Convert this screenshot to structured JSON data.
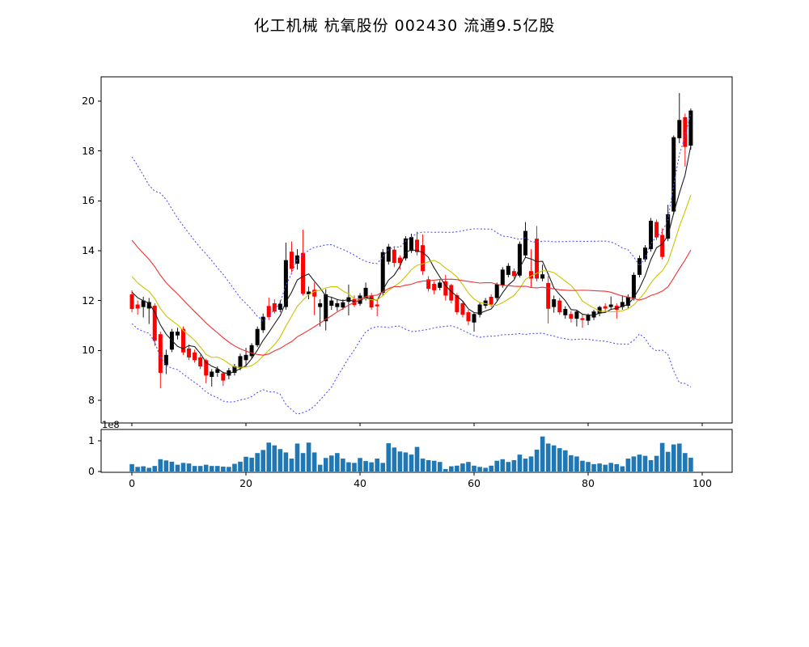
{
  "title": "化工机械 杭氧股份 002430 流通9.5亿股",
  "stock": {
    "industry": "化工机械",
    "name": "杭氧股份",
    "code": "002430",
    "float_shares": "9.5亿股"
  },
  "colors": {
    "background": "#ffffff",
    "axis": "#000000",
    "candle_up": "#000000",
    "candle_down": "#ff0000",
    "ma5": "#1c1c1c",
    "ma10": "#c9c400",
    "ma20": "#f03232",
    "bollinger": "#5050ff",
    "volume_bar": "#1f77b4"
  },
  "chart_data": [
    {
      "type": "candlestick",
      "name": "price-panel",
      "title": "化工机械 杭氧股份 002430 流通9.5亿股",
      "xlabel": "",
      "ylabel": "",
      "grid": false,
      "legend_position": "none",
      "x_ticks": [
        0,
        20,
        40,
        60,
        80,
        100
      ],
      "y_ticks": [
        8,
        10,
        12,
        14,
        16,
        18,
        20
      ],
      "xlim": [
        -5.4,
        105.25
      ],
      "ylim": [
        7.09,
        20.97
      ],
      "up_color": "#000000",
      "down_color": "#ff0000",
      "overlays": [
        {
          "name": "ma5",
          "kind": "sma",
          "window": 5,
          "color": "#1c1c1c",
          "line_style": "solid"
        },
        {
          "name": "ma10",
          "kind": "sma",
          "window": 10,
          "color": "#c9c400",
          "line_style": "solid"
        },
        {
          "name": "ma20",
          "kind": "sma",
          "window": 20,
          "color": "#f03232",
          "line_style": "solid"
        },
        {
          "name": "bollinger-upper",
          "kind": "bollinger",
          "window": 20,
          "k": 2,
          "color": "#5050ff",
          "line_style": "dashed"
        },
        {
          "name": "bollinger-lower",
          "kind": "bollinger",
          "window": 20,
          "k": -2,
          "color": "#5050ff",
          "line_style": "dashed"
        }
      ],
      "pre_window_closes": [
        17.58,
        17.27,
        16.96,
        16.65,
        16.34,
        16.03,
        15.72,
        15.41,
        15.1,
        14.79,
        14.48,
        14.17,
        13.86,
        13.55,
        13.29,
        13.03,
        12.82,
        12.62,
        12.41,
        12.2
      ],
      "columns": [
        "open",
        "high",
        "low",
        "close"
      ],
      "ohlc": [
        [
          12.25,
          12.41,
          11.53,
          11.66
        ],
        [
          11.84,
          12.0,
          11.43,
          11.68
        ],
        [
          11.74,
          12.15,
          11.32,
          12.0
        ],
        [
          11.68,
          12.1,
          11.06,
          11.94
        ],
        [
          11.79,
          11.89,
          10.18,
          10.39
        ],
        [
          10.65,
          10.75,
          8.48,
          9.1
        ],
        [
          9.41,
          10.03,
          9.05,
          9.82
        ],
        [
          10.03,
          10.86,
          9.93,
          10.75
        ],
        [
          10.6,
          10.91,
          10.44,
          10.75
        ],
        [
          10.86,
          10.96,
          9.82,
          9.92
        ],
        [
          10.08,
          10.24,
          9.61,
          9.72
        ],
        [
          9.92,
          10.03,
          9.51,
          9.61
        ],
        [
          9.72,
          9.82,
          9.25,
          9.36
        ],
        [
          9.61,
          9.67,
          8.68,
          8.99
        ],
        [
          8.94,
          9.25,
          8.55,
          9.15
        ],
        [
          9.1,
          9.36,
          8.94,
          9.25
        ],
        [
          9.08,
          9.15,
          8.58,
          8.79
        ],
        [
          8.99,
          9.3,
          8.84,
          9.2
        ],
        [
          9.1,
          9.46,
          8.99,
          9.36
        ],
        [
          9.3,
          9.87,
          9.2,
          9.77
        ],
        [
          9.61,
          10.1,
          9.35,
          9.82
        ],
        [
          9.77,
          10.29,
          9.67,
          10.21
        ],
        [
          10.21,
          10.96,
          10.13,
          10.86
        ],
        [
          10.81,
          11.48,
          10.7,
          11.35
        ],
        [
          11.78,
          12.12,
          11.22,
          11.34
        ],
        [
          11.89,
          12.05,
          11.48,
          11.56
        ],
        [
          11.63,
          12.0,
          11.53,
          11.87
        ],
        [
          11.74,
          14.32,
          11.63,
          13.62
        ],
        [
          13.96,
          14.37,
          13.13,
          13.27
        ],
        [
          13.48,
          14.06,
          13.24,
          13.81
        ],
        [
          13.91,
          14.84,
          12.2,
          12.27
        ],
        [
          12.25,
          12.56,
          12.05,
          12.36
        ],
        [
          12.43,
          12.72,
          11.41,
          12.16
        ],
        [
          11.74,
          12.05,
          10.96,
          11.89
        ],
        [
          11.17,
          12.46,
          10.8,
          12.25
        ],
        [
          11.79,
          12.15,
          11.63,
          12.0
        ],
        [
          11.74,
          12.05,
          11.58,
          11.89
        ],
        [
          11.72,
          12.05,
          11.63,
          11.93
        ],
        [
          11.95,
          12.64,
          11.4,
          12.13
        ],
        [
          12.06,
          12.2,
          11.74,
          11.82
        ],
        [
          11.87,
          12.3,
          11.79,
          12.2
        ],
        [
          12.1,
          12.72,
          12.0,
          12.51
        ],
        [
          12.2,
          12.3,
          11.63,
          11.72
        ],
        [
          11.84,
          12.05,
          11.37,
          11.77
        ],
        [
          12.31,
          14.06,
          12.2,
          13.94
        ],
        [
          13.56,
          14.27,
          13.44,
          14.16
        ],
        [
          14.04,
          14.17,
          13.34,
          13.51
        ],
        [
          13.72,
          13.81,
          13.24,
          13.51
        ],
        [
          13.69,
          14.58,
          13.6,
          14.49
        ],
        [
          13.99,
          14.68,
          13.91,
          14.54
        ],
        [
          14.44,
          14.76,
          13.81,
          13.94
        ],
        [
          14.22,
          14.65,
          13.03,
          13.18
        ],
        [
          12.85,
          12.98,
          12.36,
          12.47
        ],
        [
          12.67,
          12.77,
          12.25,
          12.41
        ],
        [
          12.51,
          12.82,
          12.41,
          12.72
        ],
        [
          12.77,
          13.03,
          12.0,
          12.2
        ],
        [
          12.62,
          12.67,
          11.89,
          12.0
        ],
        [
          12.21,
          12.3,
          11.43,
          11.53
        ],
        [
          11.89,
          12.0,
          11.32,
          11.43
        ],
        [
          11.53,
          11.63,
          11.01,
          11.17
        ],
        [
          11.12,
          11.53,
          10.75,
          11.46
        ],
        [
          11.43,
          11.94,
          11.32,
          11.84
        ],
        [
          11.79,
          12.1,
          11.68,
          12.0
        ],
        [
          12.15,
          12.25,
          11.74,
          11.84
        ],
        [
          12.1,
          12.72,
          12.0,
          12.65
        ],
        [
          12.62,
          13.34,
          12.51,
          13.24
        ],
        [
          13.03,
          13.5,
          12.93,
          13.39
        ],
        [
          13.18,
          13.29,
          12.88,
          12.98
        ],
        [
          13.0,
          14.37,
          12.93,
          14.27
        ],
        [
          13.81,
          15.15,
          13.7,
          14.79
        ],
        [
          13.18,
          14.06,
          12.51,
          12.88
        ],
        [
          14.48,
          14.99,
          12.77,
          12.88
        ],
        [
          12.88,
          13.44,
          12.77,
          13.05
        ],
        [
          12.7,
          12.98,
          11.08,
          11.67
        ],
        [
          11.74,
          12.2,
          11.51,
          12.05
        ],
        [
          12.0,
          12.1,
          11.43,
          11.53
        ],
        [
          11.41,
          11.77,
          11.27,
          11.66
        ],
        [
          11.46,
          11.58,
          11.12,
          11.27
        ],
        [
          11.27,
          11.63,
          10.96,
          11.56
        ],
        [
          11.29,
          11.48,
          10.91,
          11.22
        ],
        [
          11.19,
          11.48,
          11.02,
          11.41
        ],
        [
          11.32,
          11.63,
          11.22,
          11.56
        ],
        [
          11.48,
          11.79,
          11.37,
          11.74
        ],
        [
          11.77,
          11.89,
          11.53,
          11.68
        ],
        [
          11.74,
          12.16,
          11.62,
          11.84
        ],
        [
          11.79,
          11.89,
          11.27,
          11.63
        ],
        [
          11.74,
          12.21,
          11.63,
          11.94
        ],
        [
          11.79,
          12.25,
          11.68,
          12.15
        ],
        [
          12.1,
          13.13,
          12.0,
          13.03
        ],
        [
          13.03,
          13.81,
          12.93,
          13.7
        ],
        [
          13.65,
          14.22,
          13.55,
          14.12
        ],
        [
          14.06,
          15.31,
          13.96,
          15.2
        ],
        [
          15.15,
          15.25,
          14.43,
          14.53
        ],
        [
          14.63,
          14.89,
          13.65,
          13.75
        ],
        [
          14.48,
          15.84,
          14.38,
          15.46
        ],
        [
          15.57,
          18.62,
          15.46,
          18.55
        ],
        [
          18.51,
          20.32,
          18.31,
          19.24
        ],
        [
          19.35,
          19.5,
          17.37,
          18.16
        ],
        [
          18.21,
          19.7,
          18.05,
          19.62
        ]
      ]
    },
    {
      "type": "bar",
      "name": "volume-panel",
      "ylabel": "",
      "offset_text": "1e8",
      "y_ticks": [
        0,
        1
      ],
      "ylim": [
        0,
        1.39
      ],
      "bar_color": "#1f77b4",
      "unit": "1e8",
      "values_1e8": [
        0.24,
        0.15,
        0.17,
        0.12,
        0.18,
        0.4,
        0.36,
        0.32,
        0.22,
        0.28,
        0.26,
        0.18,
        0.18,
        0.22,
        0.18,
        0.18,
        0.16,
        0.15,
        0.25,
        0.32,
        0.48,
        0.45,
        0.6,
        0.7,
        0.94,
        0.85,
        0.73,
        0.62,
        0.42,
        0.91,
        0.6,
        0.94,
        0.62,
        0.22,
        0.44,
        0.52,
        0.6,
        0.42,
        0.3,
        0.28,
        0.44,
        0.34,
        0.3,
        0.42,
        0.28,
        0.92,
        0.78,
        0.65,
        0.62,
        0.55,
        0.8,
        0.42,
        0.37,
        0.35,
        0.31,
        0.08,
        0.17,
        0.19,
        0.26,
        0.31,
        0.19,
        0.15,
        0.12,
        0.19,
        0.35,
        0.4,
        0.31,
        0.37,
        0.55,
        0.42,
        0.49,
        0.71,
        1.14,
        0.91,
        0.85,
        0.76,
        0.69,
        0.53,
        0.49,
        0.35,
        0.31,
        0.24,
        0.26,
        0.22,
        0.28,
        0.24,
        0.17,
        0.42,
        0.49,
        0.55,
        0.51,
        0.37,
        0.51,
        0.93,
        0.64,
        0.88,
        0.91,
        0.6,
        0.45
      ]
    }
  ]
}
